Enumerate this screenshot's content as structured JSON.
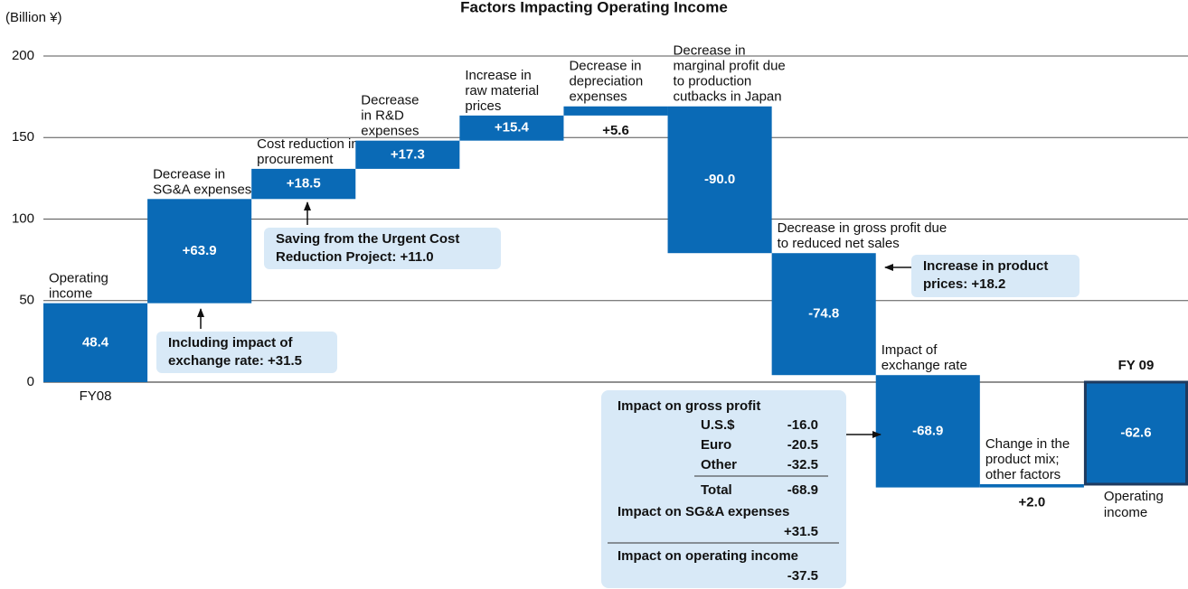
{
  "chart_data": {
    "type": "waterfall",
    "title": "Factors Impacting Operating Income",
    "y_unit": "(Billion ¥)",
    "categories": [
      [
        "Operating",
        "income"
      ],
      [
        "Decrease in",
        "SG&A expenses"
      ],
      [
        "Cost reduction in",
        "procurement"
      ],
      [
        "Decrease",
        "in R&D",
        "expenses"
      ],
      [
        "Increase in",
        "raw material",
        "prices"
      ],
      [
        "Decrease in",
        "depreciation",
        "expenses"
      ],
      [
        "Decrease in",
        "marginal profit due",
        "to production",
        "cutbacks in Japan"
      ],
      [
        "Decrease in gross profit due",
        "to reduced net sales"
      ],
      [
        "Impact of",
        "exchange rate"
      ],
      [
        "Change in the",
        "product mix;",
        "other factors"
      ],
      [
        "Operating",
        "income"
      ]
    ],
    "period_labels": [
      "FY08",
      null,
      null,
      null,
      null,
      null,
      null,
      null,
      null,
      null,
      "FY 09"
    ],
    "measure": [
      "absolute",
      "relative",
      "relative",
      "relative",
      "relative",
      "relative",
      "relative",
      "relative",
      "relative",
      "relative",
      "absolute"
    ],
    "values": [
      48.4,
      63.9,
      18.5,
      17.3,
      15.4,
      5.6,
      -90.0,
      -74.8,
      -68.9,
      2.0,
      -62.6
    ],
    "value_labels": [
      "48.4",
      "+63.9",
      "+18.5",
      "+17.3",
      "+15.4",
      "+5.6",
      "-90.0",
      "-74.8",
      "-68.9",
      "+2.0",
      "-62.6"
    ],
    "color": "#0a6ab6",
    "border_colors": [
      null,
      null,
      null,
      null,
      null,
      null,
      null,
      null,
      null,
      null,
      "#1e3a5f"
    ],
    "ylim": [
      -125,
      200
    ],
    "yticks": [
      0,
      50,
      100,
      150,
      200
    ],
    "grid": true,
    "annotations": [
      {
        "lines": [
          "Including impact of",
          "exchange rate: +31.5"
        ]
      },
      {
        "lines": [
          "Saving from the Urgent Cost",
          "Reduction Project: +11.0"
        ]
      },
      {
        "lines": [
          "Increase in product",
          "prices: +18.2"
        ]
      }
    ],
    "impact_table": {
      "gross_profit": {
        "title": "Impact on gross profit",
        "rows": [
          {
            "label": "U.S.$",
            "value": "-16.0"
          },
          {
            "label": "Euro",
            "value": "-20.5"
          },
          {
            "label": "Other",
            "value": "-32.5"
          }
        ],
        "total": {
          "label": "Total",
          "value": "-68.9"
        }
      },
      "sga": {
        "title": "Impact on SG&A expenses",
        "value": "+31.5"
      },
      "operating_income": {
        "title": "Impact on operating income",
        "value": "-37.5"
      }
    }
  }
}
